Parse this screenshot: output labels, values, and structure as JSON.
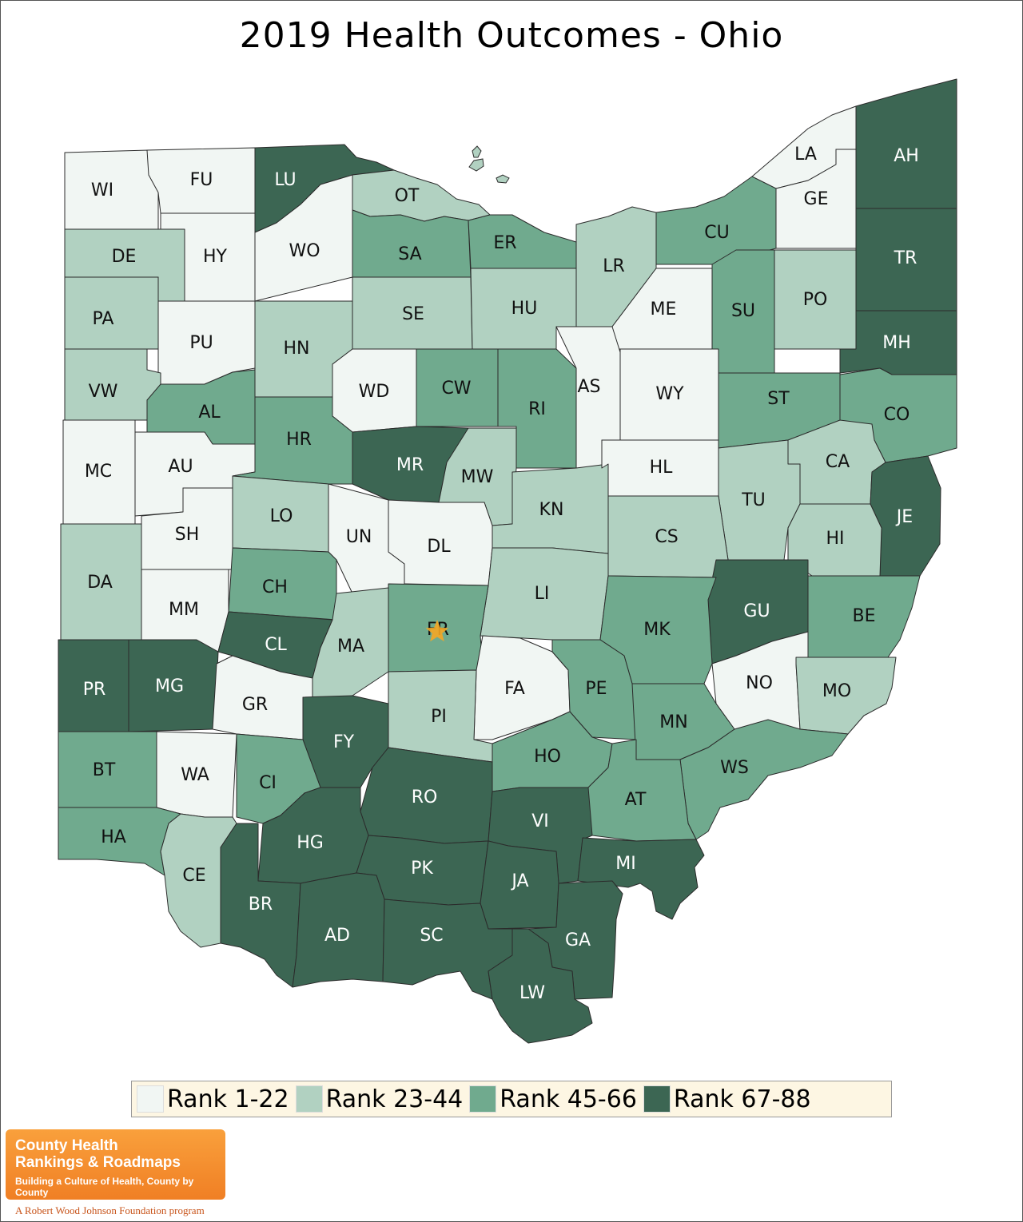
{
  "title": "2019 Health Outcomes - Ohio",
  "colors": {
    "rank_1_22": "#f1f6f3",
    "rank_23_44": "#b1d1c1",
    "rank_45_66": "#70aa8e",
    "rank_67_88": "#3c6653",
    "border": "#2b2b2b",
    "star": "#f5a623"
  },
  "legend": [
    {
      "label": "Rank 1-22",
      "tier": "rank_1_22"
    },
    {
      "label": "Rank 23-44",
      "tier": "rank_23_44"
    },
    {
      "label": "Rank 45-66",
      "tier": "rank_45_66"
    },
    {
      "label": "Rank 67-88",
      "tier": "rank_67_88"
    }
  ],
  "counties": [
    {
      "abbr": "WI",
      "tier": "rank_1_22"
    },
    {
      "abbr": "FU",
      "tier": "rank_1_22"
    },
    {
      "abbr": "LU",
      "tier": "rank_67_88"
    },
    {
      "abbr": "OT",
      "tier": "rank_23_44"
    },
    {
      "abbr": "LA",
      "tier": "rank_1_22"
    },
    {
      "abbr": "AH",
      "tier": "rank_67_88"
    },
    {
      "abbr": "GE",
      "tier": "rank_1_22"
    },
    {
      "abbr": "DE",
      "tier": "rank_23_44"
    },
    {
      "abbr": "HY",
      "tier": "rank_1_22"
    },
    {
      "abbr": "WO",
      "tier": "rank_1_22"
    },
    {
      "abbr": "SA",
      "tier": "rank_45_66"
    },
    {
      "abbr": "ER",
      "tier": "rank_45_66"
    },
    {
      "abbr": "CU",
      "tier": "rank_45_66"
    },
    {
      "abbr": "LR",
      "tier": "rank_23_44"
    },
    {
      "abbr": "TR",
      "tier": "rank_67_88"
    },
    {
      "abbr": "PA",
      "tier": "rank_23_44"
    },
    {
      "abbr": "SE",
      "tier": "rank_23_44"
    },
    {
      "abbr": "HU",
      "tier": "rank_23_44"
    },
    {
      "abbr": "ME",
      "tier": "rank_1_22"
    },
    {
      "abbr": "SU",
      "tier": "rank_45_66"
    },
    {
      "abbr": "PO",
      "tier": "rank_23_44"
    },
    {
      "abbr": "PU",
      "tier": "rank_1_22"
    },
    {
      "abbr": "HN",
      "tier": "rank_23_44"
    },
    {
      "abbr": "MH",
      "tier": "rank_67_88"
    },
    {
      "abbr": "VW",
      "tier": "rank_23_44"
    },
    {
      "abbr": "AL",
      "tier": "rank_45_66"
    },
    {
      "abbr": "WD",
      "tier": "rank_1_22"
    },
    {
      "abbr": "CW",
      "tier": "rank_45_66"
    },
    {
      "abbr": "RI",
      "tier": "rank_45_66"
    },
    {
      "abbr": "AS",
      "tier": "rank_1_22"
    },
    {
      "abbr": "WY",
      "tier": "rank_1_22"
    },
    {
      "abbr": "ST",
      "tier": "rank_45_66"
    },
    {
      "abbr": "CO",
      "tier": "rank_45_66"
    },
    {
      "abbr": "MC",
      "tier": "rank_1_22"
    },
    {
      "abbr": "AU",
      "tier": "rank_1_22"
    },
    {
      "abbr": "HR",
      "tier": "rank_45_66"
    },
    {
      "abbr": "MR",
      "tier": "rank_67_88"
    },
    {
      "abbr": "MW",
      "tier": "rank_23_44"
    },
    {
      "abbr": "KN",
      "tier": "rank_23_44"
    },
    {
      "abbr": "HL",
      "tier": "rank_1_22"
    },
    {
      "abbr": "CA",
      "tier": "rank_23_44"
    },
    {
      "abbr": "TU",
      "tier": "rank_23_44"
    },
    {
      "abbr": "JE",
      "tier": "rank_67_88"
    },
    {
      "abbr": "SH",
      "tier": "rank_1_22"
    },
    {
      "abbr": "LO",
      "tier": "rank_23_44"
    },
    {
      "abbr": "UN",
      "tier": "rank_1_22"
    },
    {
      "abbr": "DL",
      "tier": "rank_1_22"
    },
    {
      "abbr": "CS",
      "tier": "rank_23_44"
    },
    {
      "abbr": "HI",
      "tier": "rank_23_44"
    },
    {
      "abbr": "DA",
      "tier": "rank_23_44"
    },
    {
      "abbr": "CH",
      "tier": "rank_45_66"
    },
    {
      "abbr": "LI",
      "tier": "rank_23_44"
    },
    {
      "abbr": "GU",
      "tier": "rank_67_88"
    },
    {
      "abbr": "BE",
      "tier": "rank_45_66"
    },
    {
      "abbr": "MM",
      "tier": "rank_1_22"
    },
    {
      "abbr": "CL",
      "tier": "rank_67_88"
    },
    {
      "abbr": "MA",
      "tier": "rank_23_44"
    },
    {
      "abbr": "FR",
      "tier": "rank_45_66"
    },
    {
      "abbr": "MK",
      "tier": "rank_45_66"
    },
    {
      "abbr": "NO",
      "tier": "rank_1_22"
    },
    {
      "abbr": "PR",
      "tier": "rank_67_88"
    },
    {
      "abbr": "MG",
      "tier": "rank_67_88"
    },
    {
      "abbr": "GR",
      "tier": "rank_1_22"
    },
    {
      "abbr": "FA",
      "tier": "rank_1_22"
    },
    {
      "abbr": "PE",
      "tier": "rank_45_66"
    },
    {
      "abbr": "MO",
      "tier": "rank_23_44"
    },
    {
      "abbr": "PI",
      "tier": "rank_23_44"
    },
    {
      "abbr": "FY",
      "tier": "rank_67_88"
    },
    {
      "abbr": "MN",
      "tier": "rank_45_66"
    },
    {
      "abbr": "BT",
      "tier": "rank_45_66"
    },
    {
      "abbr": "WA",
      "tier": "rank_1_22"
    },
    {
      "abbr": "CI",
      "tier": "rank_45_66"
    },
    {
      "abbr": "HO",
      "tier": "rank_45_66"
    },
    {
      "abbr": "WS",
      "tier": "rank_45_66"
    },
    {
      "abbr": "RO",
      "tier": "rank_67_88"
    },
    {
      "abbr": "AT",
      "tier": "rank_45_66"
    },
    {
      "abbr": "HA",
      "tier": "rank_45_66"
    },
    {
      "abbr": "VI",
      "tier": "rank_67_88"
    },
    {
      "abbr": "HG",
      "tier": "rank_67_88"
    },
    {
      "abbr": "MI",
      "tier": "rank_67_88"
    },
    {
      "abbr": "CE",
      "tier": "rank_23_44"
    },
    {
      "abbr": "PK",
      "tier": "rank_67_88"
    },
    {
      "abbr": "JA",
      "tier": "rank_67_88"
    },
    {
      "abbr": "BR",
      "tier": "rank_67_88"
    },
    {
      "abbr": "AD",
      "tier": "rank_67_88"
    },
    {
      "abbr": "SC",
      "tier": "rank_67_88"
    },
    {
      "abbr": "GA",
      "tier": "rank_67_88"
    },
    {
      "abbr": "LW",
      "tier": "rank_67_88"
    }
  ],
  "capital_marker": {
    "county": "FR",
    "icon": "star-icon"
  },
  "logo": {
    "line1": "County Health",
    "line2": "Rankings & Roadmaps",
    "tagline": "Building a Culture of Health, County by County"
  },
  "footer": "A Robert Wood Johnson Foundation program"
}
